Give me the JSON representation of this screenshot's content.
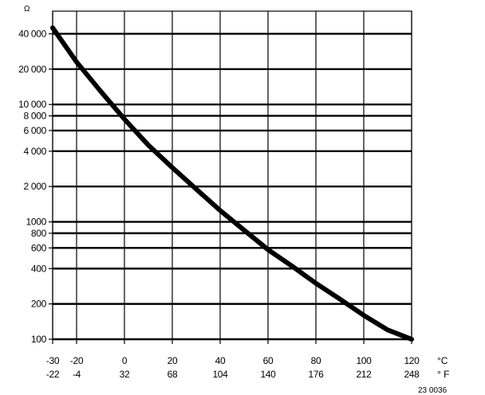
{
  "chart_data": {
    "type": "line",
    "title": "",
    "ylabel": "Ω",
    "xlabel": "",
    "y_scale": "log",
    "ylim": [
      100,
      45000
    ],
    "xlim": [
      -30,
      120
    ],
    "grid": true,
    "x_ticks_c": [
      -30,
      -20,
      0,
      20,
      40,
      60,
      80,
      100,
      120
    ],
    "x_tick_labels_c": [
      "-30",
      "-20",
      "0",
      "20",
      "40",
      "60",
      "80",
      "100",
      "120"
    ],
    "x_tick_labels_f": [
      "-22",
      "-4",
      "32",
      "68",
      "104",
      "140",
      "176",
      "212",
      "248"
    ],
    "x_unit_c": "°C",
    "x_unit_f": "° F",
    "y_ticks": [
      100,
      200,
      400,
      600,
      800,
      1000,
      2000,
      4000,
      6000,
      8000,
      10000,
      20000,
      40000
    ],
    "y_tick_labels": [
      "100",
      "200",
      "400",
      "600",
      "800",
      "1000",
      "2 000",
      "4 000",
      "6 000",
      "8 000",
      "10 000",
      "20 000",
      "40 000"
    ],
    "series": [
      {
        "x": [
          -30,
          -20,
          -10,
          0,
          10,
          20,
          30,
          40,
          50,
          60,
          70,
          80,
          90,
          100,
          110,
          120
        ],
        "y": [
          45000,
          23000,
          13000,
          7500,
          4500,
          2900,
          1900,
          1250,
          850,
          580,
          420,
          300,
          220,
          160,
          120,
          100
        ]
      }
    ]
  },
  "figure_id": "23 0036"
}
